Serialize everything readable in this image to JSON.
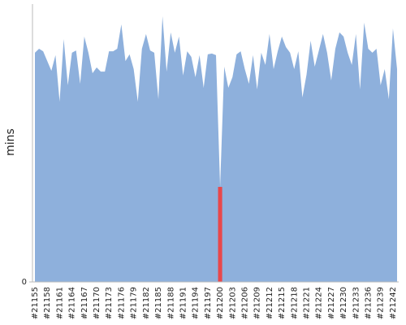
{
  "chart_data": {
    "type": "area",
    "y_label": "mins",
    "categories": [
      "#21155",
      null,
      null,
      "#21158",
      null,
      null,
      "#21161",
      null,
      null,
      "#21164",
      null,
      null,
      "#21167",
      null,
      null,
      "#21170",
      null,
      null,
      "#21173",
      null,
      null,
      "#21176",
      null,
      null,
      "#21179",
      null,
      null,
      "#21182",
      null,
      null,
      "#21185",
      null,
      null,
      "#21188",
      null,
      null,
      "#21191",
      null,
      null,
      "#21194",
      null,
      null,
      "#21197",
      null,
      null,
      "#21200",
      null,
      null,
      "#21203",
      null,
      null,
      "#21206",
      null,
      null,
      "#21209",
      null,
      null,
      "#21212",
      null,
      null,
      "#21215",
      null,
      null,
      "#21218",
      null,
      null,
      "#21221",
      null,
      null,
      "#21224",
      null,
      null,
      "#21227",
      null,
      null,
      "#21230",
      null,
      null,
      "#21233",
      null,
      null,
      "#21236",
      null,
      null,
      "#21239",
      null,
      null,
      "#21242",
      null
    ],
    "values": [
      82.5,
      83.9,
      83.0,
      79.5,
      76.0,
      81.6,
      64.9,
      87.4,
      70.8,
      82.5,
      83.3,
      71.3,
      88.3,
      82.5,
      75.1,
      77.2,
      75.7,
      75.7,
      83.0,
      83.0,
      83.9,
      92.7,
      79.5,
      81.9,
      76.6,
      64.9,
      83.9,
      89.2,
      83.3,
      82.5,
      65.8,
      95.6,
      75.7,
      89.8,
      82.5,
      88.3,
      74.3,
      83.0,
      81.0,
      73.7,
      81.6,
      69.9,
      81.9,
      82.2,
      81.6,
      34.2,
      77.5,
      69.9,
      73.7,
      81.9,
      83.0,
      76.6,
      71.3,
      81.6,
      69.3,
      82.5,
      78.1,
      89.2,
      76.6,
      83.0,
      88.3,
      84.5,
      82.5,
      76.6,
      83.0,
      66.4,
      74.6,
      86.8,
      77.5,
      83.3,
      89.2,
      82.5,
      72.5,
      83.9,
      89.8,
      88.3,
      82.5,
      78.1,
      89.2,
      69.3,
      93.3,
      83.9,
      82.5,
      83.9,
      70.8,
      76.6,
      65.8,
      91.2,
      76.6
    ],
    "color": "#8eb0dc",
    "point_colors": {
      "45": "#e8474b"
    },
    "ylim": [
      0,
      100
    ],
    "yticks": [
      0
    ]
  }
}
